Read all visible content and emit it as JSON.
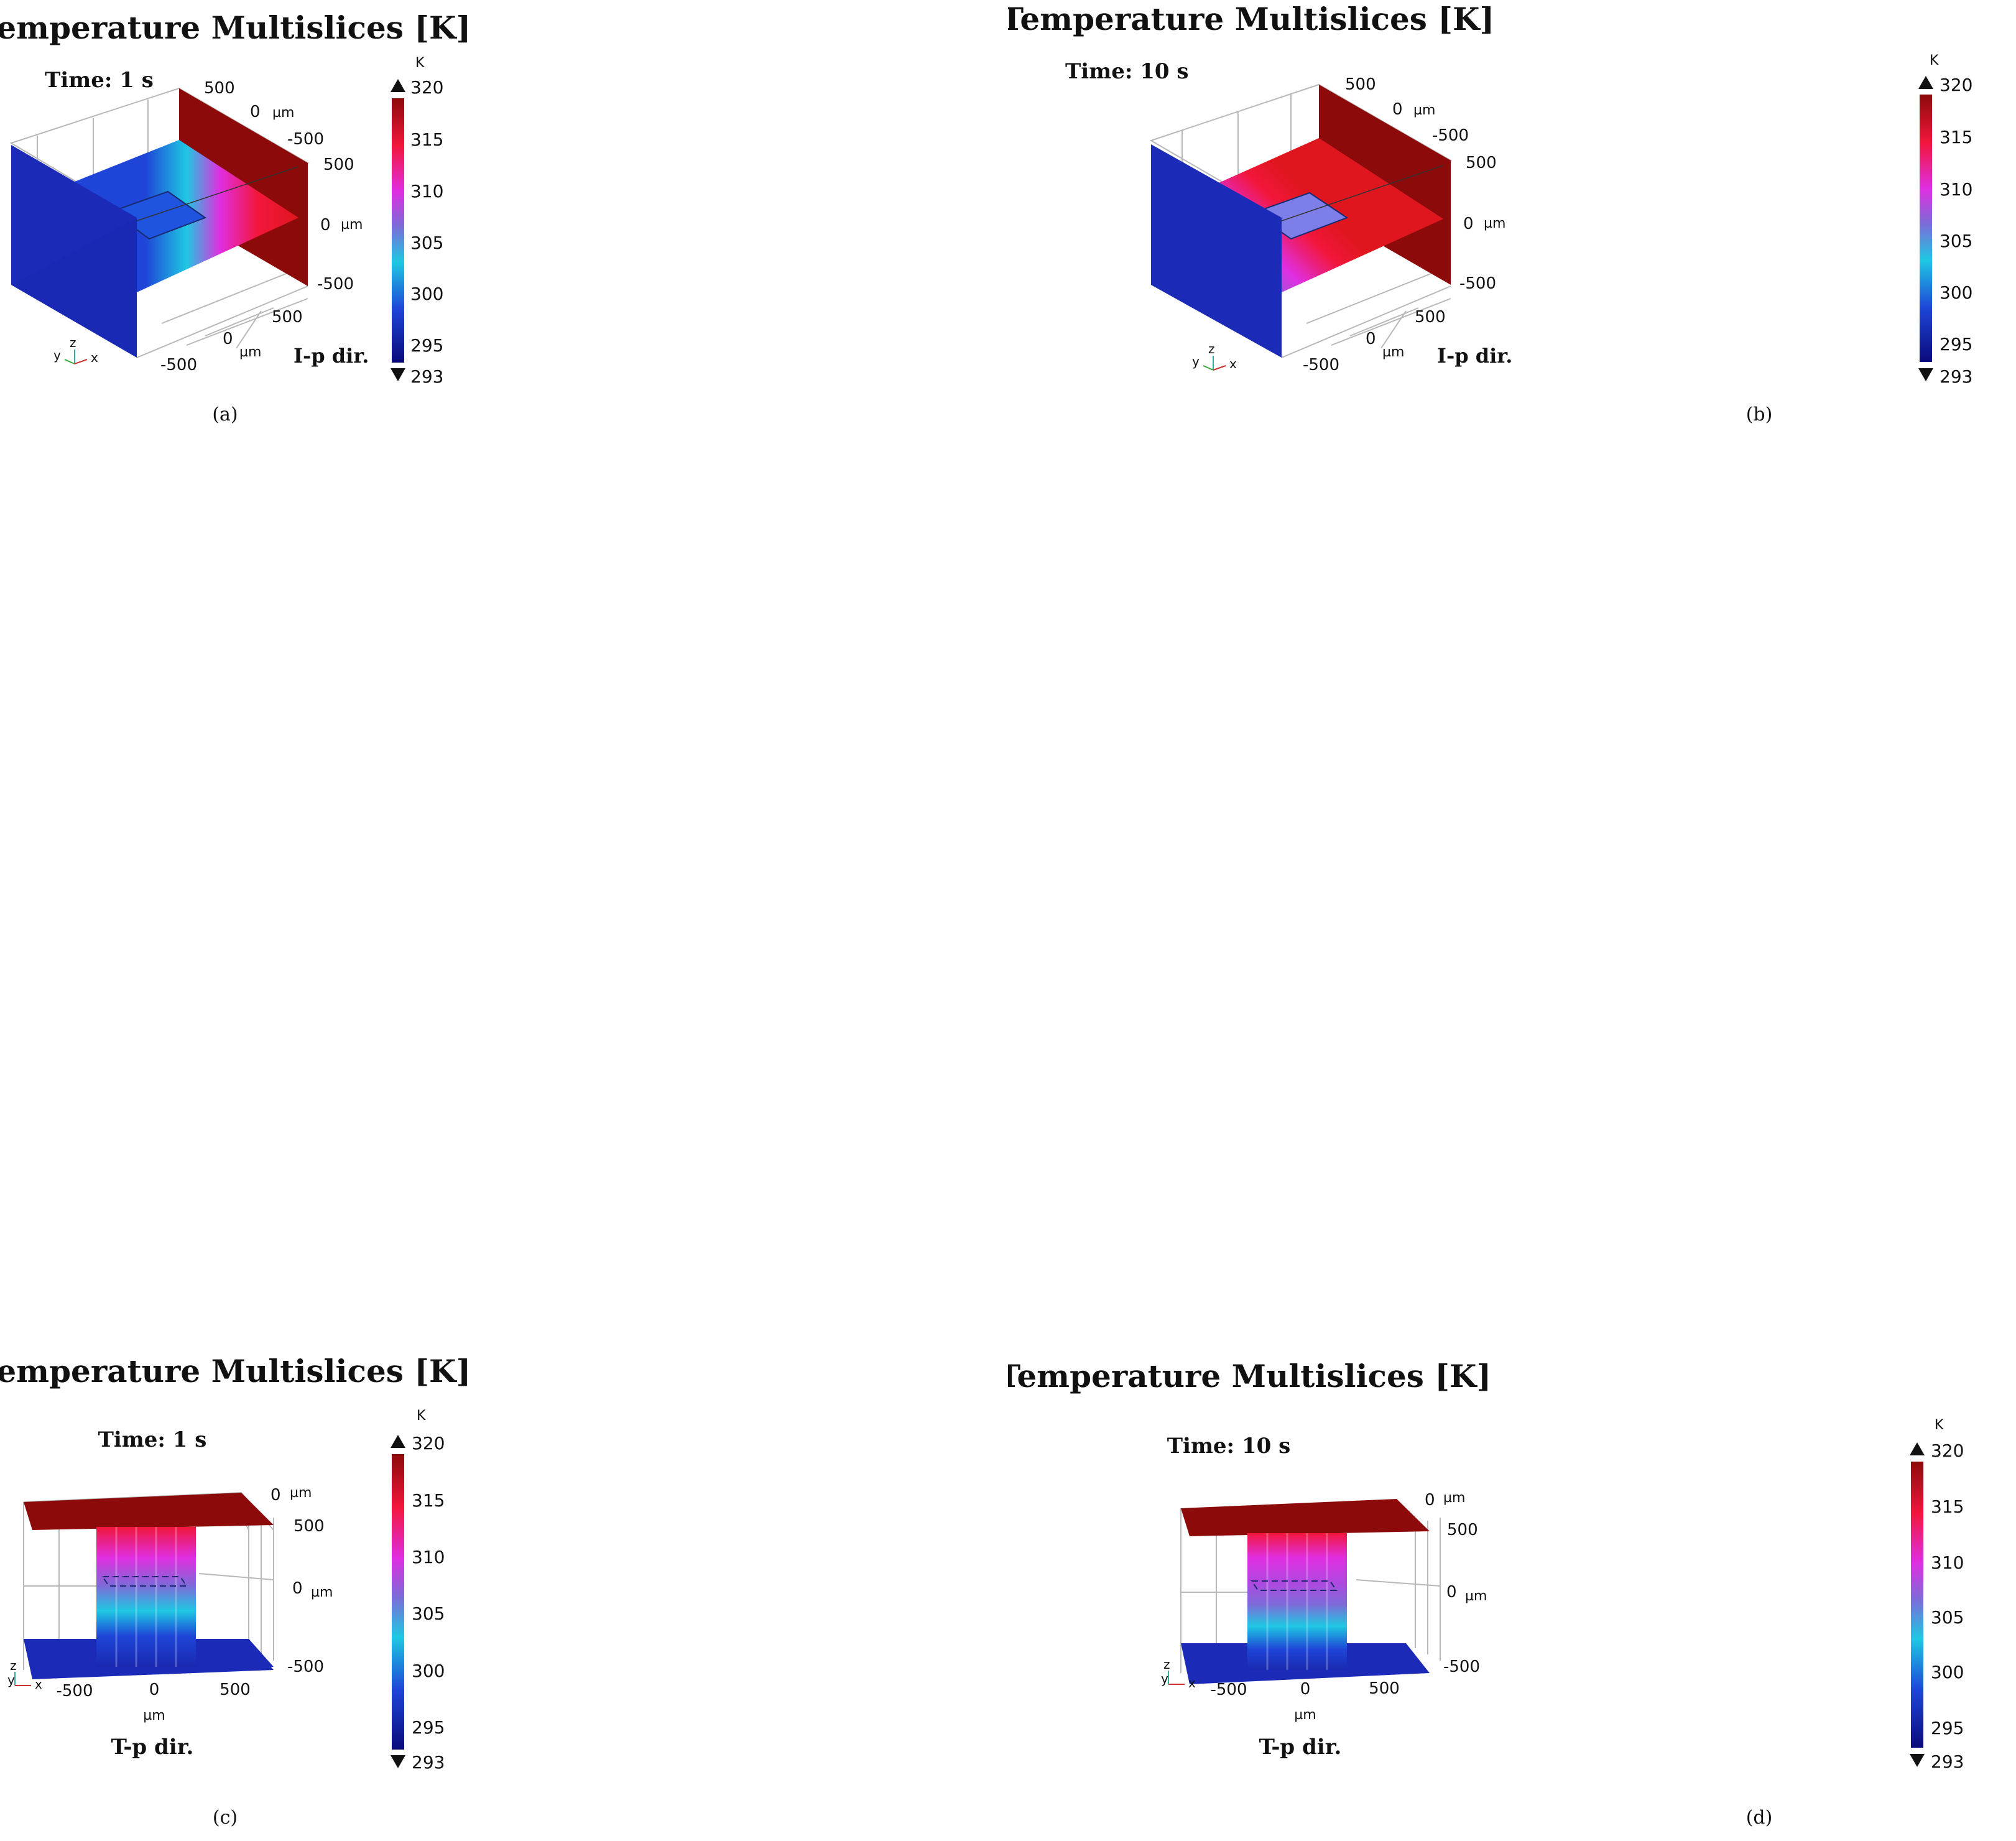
{
  "colors": {
    "c293": "#0a0a7a",
    "c298": "#1e45d8",
    "c302": "#1ec8e2",
    "c306": "#7e6ad8",
    "c310": "#e02ee0",
    "c315": "#f2163c",
    "c320": "#8c0a0a",
    "grid": "#b8b8b8",
    "text": "#111111"
  },
  "colorbar": {
    "unit": "K",
    "max_label": "320",
    "min_label": "293",
    "ticks": [
      "315",
      "310",
      "305",
      "300",
      "295"
    ],
    "max_arrow_icon": "triangle-up-icon",
    "min_arrow_icon": "triangle-down-icon"
  },
  "panels": [
    {
      "caption": "(a)",
      "title": "Temperature Multislices [K]",
      "time_label": "Time: 1 s",
      "view": "iso",
      "back_axis": [
        "500",
        "0",
        "µm",
        "-500"
      ],
      "right_axis": [
        "500",
        "0",
        "µm",
        "-500"
      ],
      "bottom_axis": [
        "500",
        "0",
        "µm",
        "-500"
      ],
      "dir_label": "I-p dir.",
      "triad": {
        "y": "y",
        "z": "z",
        "x": "x"
      }
    },
    {
      "caption": "(b)",
      "title": "Temperature Multislices [K]",
      "time_label": "Time: 10 s",
      "view": "iso",
      "back_axis": [
        "500",
        "0",
        "µm",
        "-500"
      ],
      "right_axis": [
        "500",
        "0",
        "µm",
        "-500"
      ],
      "bottom_axis": [
        "500",
        "0",
        "µm",
        "-500"
      ],
      "dir_label": "I-p dir.",
      "triad": {
        "y": "y",
        "z": "z",
        "x": "x"
      }
    },
    {
      "caption": "(c)",
      "title": "Temperature Multislices [K]",
      "time_label": "Time: 1 s",
      "view": "front",
      "right_axis": [
        "0",
        "µm",
        "500",
        "0",
        "µm",
        "-500"
      ],
      "x_axis": [
        "-500",
        "0",
        "500"
      ],
      "x_unit": "µm",
      "dir_label": "T-p dir.",
      "triad": {
        "z": "z",
        "y": "y",
        "x": "x"
      }
    },
    {
      "caption": "(d)",
      "title": "Temperature Multislices [K]",
      "time_label": "Time: 10 s",
      "view": "front",
      "right_axis": [
        "0",
        "µm",
        "500",
        "0",
        "µm",
        "-500"
      ],
      "x_axis": [
        "-500",
        "0",
        "500"
      ],
      "x_unit": "µm",
      "dir_label": "T-p dir.",
      "triad": {
        "z": "z",
        "y": "y",
        "x": "x"
      }
    }
  ]
}
